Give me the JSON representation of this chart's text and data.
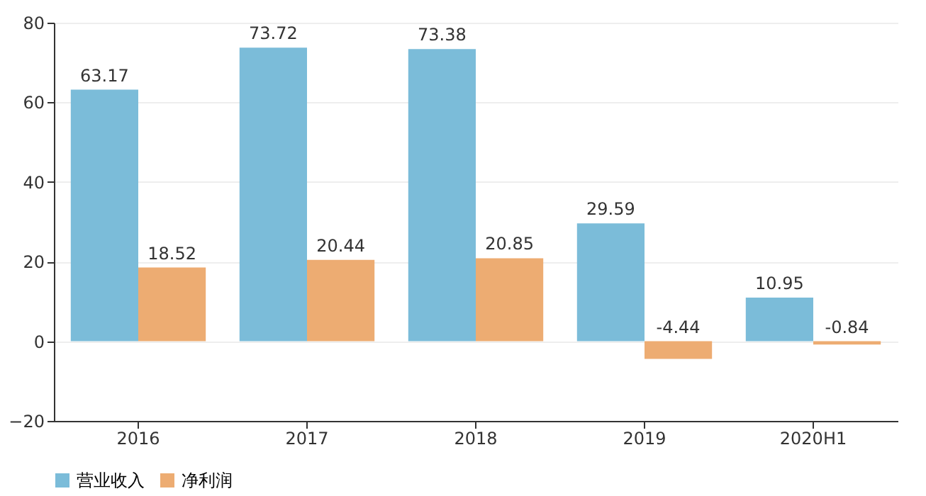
{
  "chart_data": {
    "type": "bar",
    "categories": [
      "2016",
      "2017",
      "2018",
      "2019",
      "2020H1"
    ],
    "series": [
      {
        "name": "营业收入",
        "color": "#7bbcd9",
        "values": [
          63.17,
          73.72,
          73.38,
          29.59,
          10.95
        ]
      },
      {
        "name": "净利润",
        "color": "#edac72",
        "values": [
          18.52,
          20.44,
          20.85,
          -4.44,
          -0.84
        ]
      }
    ],
    "ylim": [
      -20,
      80
    ],
    "yticks": [
      -20,
      0,
      20,
      40,
      60,
      80
    ],
    "grid": "y",
    "legend": "bottom",
    "data_labels": true
  }
}
